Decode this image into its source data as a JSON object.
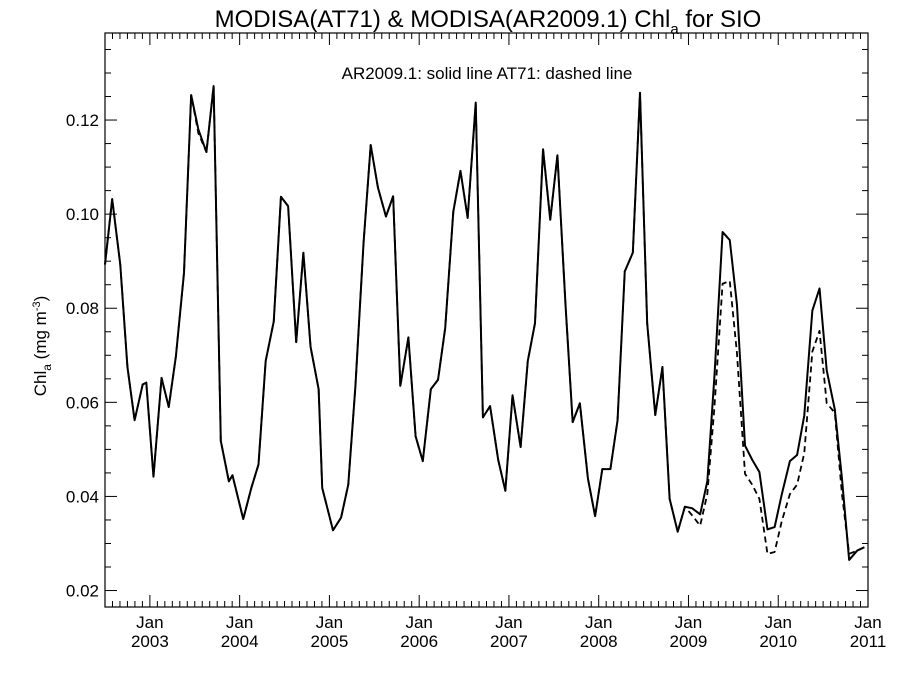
{
  "chart_data": {
    "type": "line",
    "title": {
      "main": "MODISA(AT71) & MODISA(AR2009.1)  Chl",
      "sub": "a",
      "tail": " for SIO"
    },
    "annotation": "AR2009.1: solid line   AT71: dashed line",
    "ylabel": {
      "main": "Chl",
      "sub": "a",
      "unit_pre": " (mg m",
      "unit_sup": "-3",
      "unit_post": ")"
    },
    "xlim": [
      2002.5,
      2011.0
    ],
    "ylim": [
      0.0165,
      0.1385
    ],
    "y_ticks": [
      0.02,
      0.04,
      0.06,
      0.08,
      0.1,
      0.12
    ],
    "y_tick_labels": [
      "0.02",
      "0.04",
      "0.06",
      "0.08",
      "0.10",
      "0.12"
    ],
    "x_ticks": [
      {
        "value": 2003,
        "month": "Jan",
        "year": "2003"
      },
      {
        "value": 2004,
        "month": "Jan",
        "year": "2004"
      },
      {
        "value": 2005,
        "month": "Jan",
        "year": "2005"
      },
      {
        "value": 2006,
        "month": "Jan",
        "year": "2006"
      },
      {
        "value": 2007,
        "month": "Jan",
        "year": "2007"
      },
      {
        "value": 2008,
        "month": "Jan",
        "year": "2008"
      },
      {
        "value": 2009,
        "month": "Jan",
        "year": "2009"
      },
      {
        "value": 2010,
        "month": "Jan",
        "year": "2010"
      },
      {
        "value": 2011,
        "month": "Jan",
        "year": "2011"
      }
    ],
    "x_minor_ticks_per_year": 12,
    "y_minor_tick_step": 0.005,
    "grid": false,
    "series": [
      {
        "name": "AR2009.1",
        "style": "solid",
        "color": "#000000",
        "points": [
          [
            2002.5,
            0.0893
          ],
          [
            2002.58,
            0.1032
          ],
          [
            2002.67,
            0.0893
          ],
          [
            2002.75,
            0.0675
          ],
          [
            2002.83,
            0.0562
          ],
          [
            2002.92,
            0.0638
          ],
          [
            2002.96,
            0.0642
          ],
          [
            2003.04,
            0.0442
          ],
          [
            2003.13,
            0.0652
          ],
          [
            2003.21,
            0.059
          ],
          [
            2003.29,
            0.0698
          ],
          [
            2003.38,
            0.0875
          ],
          [
            2003.46,
            0.1253
          ],
          [
            2003.54,
            0.118
          ],
          [
            2003.63,
            0.1132
          ],
          [
            2003.71,
            0.1272
          ],
          [
            2003.79,
            0.0518
          ],
          [
            2003.88,
            0.0432
          ],
          [
            2003.92,
            0.0445
          ],
          [
            2004.04,
            0.0352
          ],
          [
            2004.13,
            0.0418
          ],
          [
            2004.21,
            0.0468
          ],
          [
            2004.29,
            0.0688
          ],
          [
            2004.38,
            0.0772
          ],
          [
            2004.46,
            0.1037
          ],
          [
            2004.54,
            0.1017
          ],
          [
            2004.63,
            0.0728
          ],
          [
            2004.71,
            0.0918
          ],
          [
            2004.79,
            0.0718
          ],
          [
            2004.88,
            0.0628
          ],
          [
            2004.92,
            0.0418
          ],
          [
            2005.04,
            0.0328
          ],
          [
            2005.13,
            0.0355
          ],
          [
            2005.21,
            0.0425
          ],
          [
            2005.29,
            0.0635
          ],
          [
            2005.38,
            0.0938
          ],
          [
            2005.46,
            0.1147
          ],
          [
            2005.54,
            0.1057
          ],
          [
            2005.63,
            0.0995
          ],
          [
            2005.71,
            0.1038
          ],
          [
            2005.79,
            0.0635
          ],
          [
            2005.88,
            0.0738
          ],
          [
            2005.96,
            0.0528
          ],
          [
            2006.04,
            0.0475
          ],
          [
            2006.13,
            0.0628
          ],
          [
            2006.21,
            0.0648
          ],
          [
            2006.29,
            0.0758
          ],
          [
            2006.38,
            0.1005
          ],
          [
            2006.46,
            0.1092
          ],
          [
            2006.54,
            0.0992
          ],
          [
            2006.63,
            0.1237
          ],
          [
            2006.71,
            0.0568
          ],
          [
            2006.79,
            0.0592
          ],
          [
            2006.88,
            0.0478
          ],
          [
            2006.96,
            0.0412
          ],
          [
            2007.04,
            0.0615
          ],
          [
            2007.13,
            0.0505
          ],
          [
            2007.21,
            0.0688
          ],
          [
            2007.29,
            0.0768
          ],
          [
            2007.38,
            0.1138
          ],
          [
            2007.46,
            0.0988
          ],
          [
            2007.54,
            0.1125
          ],
          [
            2007.63,
            0.0808
          ],
          [
            2007.71,
            0.0558
          ],
          [
            2007.79,
            0.0598
          ],
          [
            2007.88,
            0.0438
          ],
          [
            2007.96,
            0.0358
          ],
          [
            2008.04,
            0.0458
          ],
          [
            2008.13,
            0.0458
          ],
          [
            2008.21,
            0.0562
          ],
          [
            2008.29,
            0.0878
          ],
          [
            2008.38,
            0.0918
          ],
          [
            2008.46,
            0.1258
          ],
          [
            2008.54,
            0.0768
          ],
          [
            2008.63,
            0.0573
          ],
          [
            2008.71,
            0.0675
          ],
          [
            2008.79,
            0.0395
          ],
          [
            2008.88,
            0.0325
          ],
          [
            2008.96,
            0.0378
          ],
          [
            2009.04,
            0.0375
          ],
          [
            2009.13,
            0.0362
          ],
          [
            2009.21,
            0.0432
          ],
          [
            2009.29,
            0.0658
          ],
          [
            2009.38,
            0.0962
          ],
          [
            2009.46,
            0.0945
          ],
          [
            2009.54,
            0.0808
          ],
          [
            2009.63,
            0.0508
          ],
          [
            2009.71,
            0.0478
          ],
          [
            2009.79,
            0.0452
          ],
          [
            2009.88,
            0.033
          ],
          [
            2009.96,
            0.0335
          ],
          [
            2010.04,
            0.0405
          ],
          [
            2010.13,
            0.0475
          ],
          [
            2010.21,
            0.0488
          ],
          [
            2010.29,
            0.0572
          ],
          [
            2010.38,
            0.0795
          ],
          [
            2010.46,
            0.0842
          ],
          [
            2010.54,
            0.0668
          ],
          [
            2010.63,
            0.0585
          ],
          [
            2010.71,
            0.0438
          ],
          [
            2010.79,
            0.0265
          ],
          [
            2010.88,
            0.0285
          ],
          [
            2010.96,
            0.0292
          ]
        ]
      },
      {
        "name": "AT71",
        "style": "dashed",
        "color": "#000000",
        "points": [
          [
            2002.5,
            0.0893
          ],
          [
            2002.58,
            0.1032
          ],
          [
            2002.67,
            0.0893
          ],
          [
            2002.75,
            0.0675
          ],
          [
            2002.83,
            0.0562
          ],
          [
            2002.92,
            0.0638
          ],
          [
            2002.96,
            0.0642
          ],
          [
            2003.04,
            0.0442
          ],
          [
            2003.13,
            0.0652
          ],
          [
            2003.21,
            0.059
          ],
          [
            2003.29,
            0.0698
          ],
          [
            2003.38,
            0.0875
          ],
          [
            2003.46,
            0.1253
          ],
          [
            2003.54,
            0.1172
          ],
          [
            2003.63,
            0.1132
          ],
          [
            2003.71,
            0.1272
          ],
          [
            2003.79,
            0.0518
          ],
          [
            2003.88,
            0.0432
          ],
          [
            2003.92,
            0.0445
          ],
          [
            2004.04,
            0.0352
          ],
          [
            2004.13,
            0.0418
          ],
          [
            2004.21,
            0.0468
          ],
          [
            2004.29,
            0.0688
          ],
          [
            2004.38,
            0.0772
          ],
          [
            2004.46,
            0.1037
          ],
          [
            2004.54,
            0.1017
          ],
          [
            2004.63,
            0.0728
          ],
          [
            2004.71,
            0.0918
          ],
          [
            2004.79,
            0.0718
          ],
          [
            2004.88,
            0.0628
          ],
          [
            2004.92,
            0.0418
          ],
          [
            2005.04,
            0.0328
          ],
          [
            2005.13,
            0.0355
          ],
          [
            2005.21,
            0.0425
          ],
          [
            2005.29,
            0.0635
          ],
          [
            2005.38,
            0.0938
          ],
          [
            2005.46,
            0.1147
          ],
          [
            2005.54,
            0.1057
          ],
          [
            2005.63,
            0.0995
          ],
          [
            2005.71,
            0.1038
          ],
          [
            2005.79,
            0.0635
          ],
          [
            2005.88,
            0.0738
          ],
          [
            2005.96,
            0.0528
          ],
          [
            2006.04,
            0.0475
          ],
          [
            2006.13,
            0.0628
          ],
          [
            2006.21,
            0.0648
          ],
          [
            2006.29,
            0.0758
          ],
          [
            2006.38,
            0.1005
          ],
          [
            2006.46,
            0.1092
          ],
          [
            2006.54,
            0.0992
          ],
          [
            2006.63,
            0.1237
          ],
          [
            2006.71,
            0.0568
          ],
          [
            2006.79,
            0.0592
          ],
          [
            2006.88,
            0.0478
          ],
          [
            2006.96,
            0.0412
          ],
          [
            2007.04,
            0.0615
          ],
          [
            2007.13,
            0.0505
          ],
          [
            2007.21,
            0.0688
          ],
          [
            2007.29,
            0.0768
          ],
          [
            2007.38,
            0.1138
          ],
          [
            2007.46,
            0.0988
          ],
          [
            2007.54,
            0.1125
          ],
          [
            2007.63,
            0.0808
          ],
          [
            2007.71,
            0.0558
          ],
          [
            2007.79,
            0.0598
          ],
          [
            2007.88,
            0.0438
          ],
          [
            2007.96,
            0.0358
          ],
          [
            2008.04,
            0.0458
          ],
          [
            2008.13,
            0.0458
          ],
          [
            2008.21,
            0.0562
          ],
          [
            2008.29,
            0.0878
          ],
          [
            2008.38,
            0.0918
          ],
          [
            2008.46,
            0.1258
          ],
          [
            2008.54,
            0.0768
          ],
          [
            2008.63,
            0.0573
          ],
          [
            2008.71,
            0.0675
          ],
          [
            2008.79,
            0.0395
          ],
          [
            2008.88,
            0.0325
          ],
          [
            2008.96,
            0.0378
          ],
          [
            2009.04,
            0.036
          ],
          [
            2009.13,
            0.0338
          ],
          [
            2009.21,
            0.0405
          ],
          [
            2009.29,
            0.0592
          ],
          [
            2009.38,
            0.0852
          ],
          [
            2009.46,
            0.0858
          ],
          [
            2009.54,
            0.0705
          ],
          [
            2009.63,
            0.0448
          ],
          [
            2009.71,
            0.0425
          ],
          [
            2009.79,
            0.0395
          ],
          [
            2009.88,
            0.0278
          ],
          [
            2009.96,
            0.0282
          ],
          [
            2010.04,
            0.0348
          ],
          [
            2010.13,
            0.0405
          ],
          [
            2010.21,
            0.0425
          ],
          [
            2010.29,
            0.0492
          ],
          [
            2010.38,
            0.0708
          ],
          [
            2010.46,
            0.0752
          ],
          [
            2010.54,
            0.0598
          ],
          [
            2010.63,
            0.0578
          ],
          [
            2010.71,
            0.0405
          ],
          [
            2010.79,
            0.0278
          ],
          [
            2010.88,
            0.0285
          ],
          [
            2010.96,
            0.0292
          ]
        ]
      }
    ]
  }
}
